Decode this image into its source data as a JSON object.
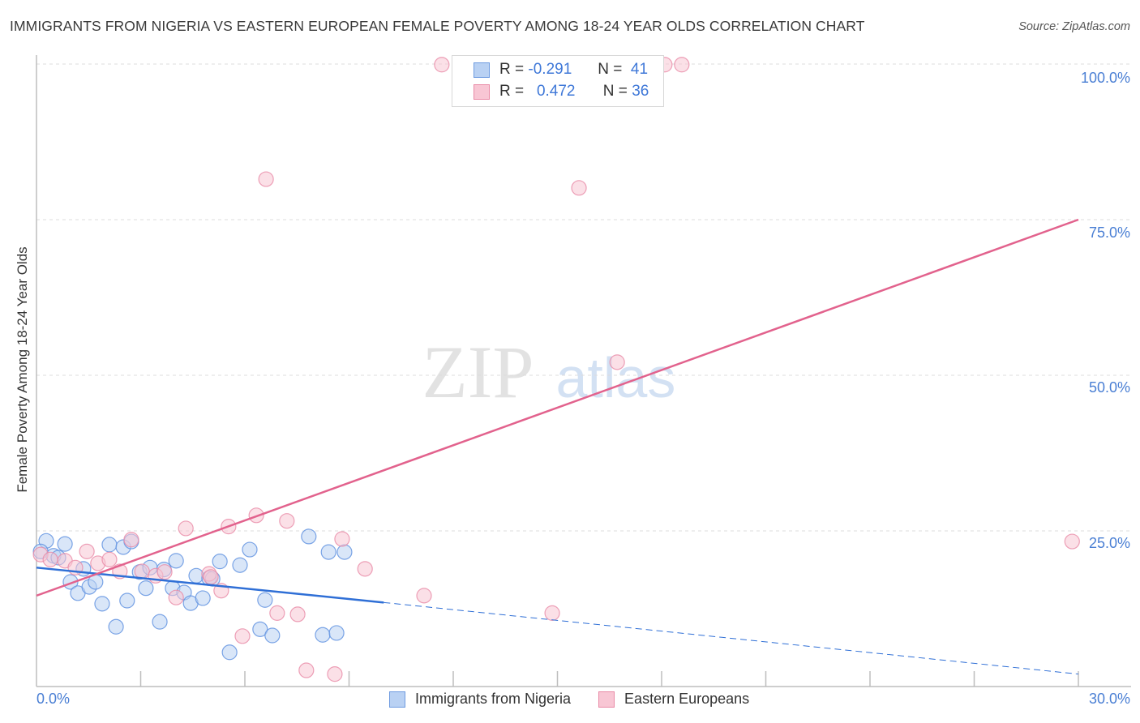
{
  "chart_data": {
    "type": "scatter",
    "title": "IMMIGRANTS FROM NIGERIA VS EASTERN EUROPEAN FEMALE POVERTY AMONG 18-24 YEAR OLDS CORRELATION CHART",
    "source": "Source: ZipAtlas.com",
    "xlabel": "",
    "ylabel": "Female Poverty Among 18-24 Year Olds",
    "xlim": [
      0,
      30
    ],
    "ylim": [
      0,
      100
    ],
    "x_tick_labels": [
      "0.0%",
      "30.0%"
    ],
    "y_tick_labels": [
      {
        "value": 100,
        "label": "100.0%"
      },
      {
        "value": 75,
        "label": "75.0%"
      },
      {
        "value": 50,
        "label": "50.0%"
      },
      {
        "value": 25,
        "label": "25.0%"
      }
    ],
    "grid": true,
    "watermark": "ZIPatlas",
    "legend_stats": [
      {
        "r_label": "R =",
        "r": "-0.291",
        "n_label": "N =",
        "n": "41"
      },
      {
        "r_label": "R =",
        "r": "0.472",
        "n_label": "N =",
        "n": "36"
      }
    ],
    "series": [
      {
        "name": "Immigrants from Nigeria",
        "color": "#5b8fe0",
        "fill": "#b9d1f3",
        "trend": {
          "x0": 0,
          "y0": 19.1,
          "x_solid_end": 10,
          "y_solid_end": 13.5,
          "x1": 30,
          "y1": 2.0
        },
        "points": [
          [
            0.28,
            23.4
          ],
          [
            0.12,
            21.7
          ],
          [
            0.49,
            21.0
          ],
          [
            0.63,
            20.7
          ],
          [
            0.82,
            22.9
          ],
          [
            1.35,
            18.9
          ],
          [
            0.98,
            16.8
          ],
          [
            1.19,
            15.0
          ],
          [
            1.52,
            16.0
          ],
          [
            1.7,
            16.8
          ],
          [
            1.89,
            13.3
          ],
          [
            2.1,
            22.8
          ],
          [
            2.29,
            9.6
          ],
          [
            2.5,
            22.4
          ],
          [
            2.61,
            13.8
          ],
          [
            2.73,
            23.3
          ],
          [
            2.97,
            18.4
          ],
          [
            3.15,
            15.8
          ],
          [
            3.27,
            19.1
          ],
          [
            3.55,
            10.4
          ],
          [
            3.67,
            18.8
          ],
          [
            3.92,
            15.8
          ],
          [
            4.02,
            20.2
          ],
          [
            4.25,
            15.1
          ],
          [
            4.44,
            13.4
          ],
          [
            4.6,
            17.8
          ],
          [
            4.79,
            14.2
          ],
          [
            4.97,
            17.4
          ],
          [
            5.07,
            17.3
          ],
          [
            5.28,
            20.1
          ],
          [
            5.56,
            5.5
          ],
          [
            5.86,
            19.5
          ],
          [
            6.14,
            22.0
          ],
          [
            6.44,
            9.2
          ],
          [
            6.58,
            13.9
          ],
          [
            6.79,
            8.2
          ],
          [
            7.84,
            24.1
          ],
          [
            8.24,
            8.3
          ],
          [
            8.41,
            21.6
          ],
          [
            8.64,
            8.6
          ],
          [
            8.87,
            21.6
          ]
        ]
      },
      {
        "name": "Eastern Europeans",
        "color": "#e98aa6",
        "fill": "#f8c6d4",
        "trend": {
          "x0": 0,
          "y0": 14.6,
          "x1": 30,
          "y1": 75.0
        },
        "points": [
          [
            11.67,
            99.9
          ],
          [
            18.09,
            99.9
          ],
          [
            18.58,
            99.9
          ],
          [
            6.61,
            81.5
          ],
          [
            15.62,
            80.1
          ],
          [
            16.72,
            52.1
          ],
          [
            29.82,
            23.3
          ],
          [
            0.12,
            21.2
          ],
          [
            0.4,
            20.4
          ],
          [
            0.82,
            20.2
          ],
          [
            1.12,
            19.1
          ],
          [
            1.45,
            21.7
          ],
          [
            1.77,
            19.8
          ],
          [
            2.1,
            20.4
          ],
          [
            2.4,
            18.5
          ],
          [
            2.73,
            23.6
          ],
          [
            3.04,
            18.5
          ],
          [
            3.43,
            17.8
          ],
          [
            3.69,
            18.4
          ],
          [
            4.02,
            14.3
          ],
          [
            4.3,
            25.4
          ],
          [
            4.97,
            18.1
          ],
          [
            5.32,
            15.4
          ],
          [
            5.53,
            25.7
          ],
          [
            5.93,
            8.1
          ],
          [
            6.33,
            27.5
          ],
          [
            6.93,
            11.8
          ],
          [
            7.21,
            26.6
          ],
          [
            7.52,
            11.6
          ],
          [
            7.77,
            2.6
          ],
          [
            8.59,
            2.0
          ],
          [
            8.8,
            23.7
          ],
          [
            9.46,
            18.9
          ],
          [
            11.16,
            14.6
          ],
          [
            14.85,
            11.8
          ],
          [
            5.02,
            17.6
          ]
        ]
      }
    ]
  }
}
